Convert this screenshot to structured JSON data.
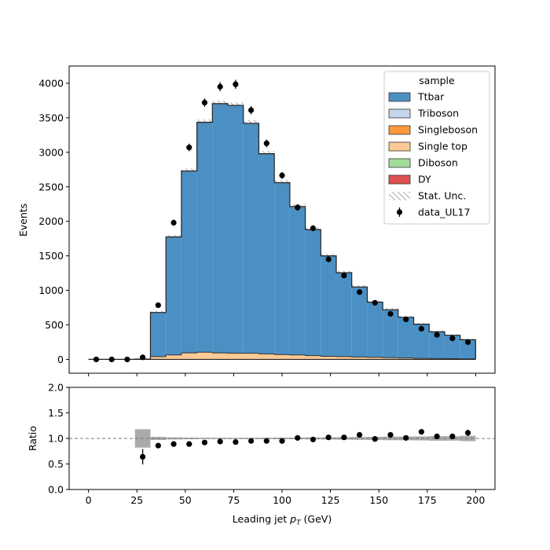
{
  "chart_data": [
    {
      "type": "stacked-step-histogram",
      "ylabel": "Events",
      "ylim": [
        -200,
        4250
      ],
      "yticks": [
        0,
        500,
        1000,
        1500,
        2000,
        2500,
        3000,
        3500,
        4000
      ],
      "bin_edges": [
        0,
        8,
        16,
        24,
        32,
        40,
        48,
        56,
        64,
        72,
        80,
        88,
        96,
        104,
        112,
        120,
        128,
        136,
        144,
        152,
        160,
        168,
        176,
        184,
        192,
        200
      ],
      "stack_totals": [
        0,
        0,
        0,
        5,
        680,
        1775,
        2730,
        3435,
        3705,
        3680,
        3420,
        2980,
        2560,
        2215,
        1880,
        1500,
        1255,
        1050,
        830,
        720,
        610,
        510,
        400,
        350,
        285
      ],
      "singletop_top": [
        0,
        0,
        0,
        3,
        40,
        65,
        95,
        105,
        95,
        90,
        90,
        80,
        70,
        65,
        55,
        45,
        40,
        35,
        30,
        25,
        20,
        15,
        12,
        10,
        8
      ],
      "stat_unc": [
        0,
        0,
        0,
        3,
        25,
        30,
        35,
        40,
        45,
        45,
        45,
        40,
        40,
        35,
        35,
        32,
        30,
        28,
        25,
        25,
        22,
        20,
        18,
        15,
        15
      ],
      "data_x": [
        4,
        12,
        20,
        28,
        36,
        44,
        52,
        60,
        68,
        76,
        84,
        92,
        100,
        108,
        116,
        124,
        132,
        140,
        148,
        156,
        164,
        172,
        180,
        188,
        196
      ],
      "data_y": [
        0,
        0,
        0,
        30,
        785,
        1980,
        3070,
        3720,
        3950,
        3985,
        3610,
        3130,
        2665,
        2200,
        1900,
        1450,
        1215,
        975,
        820,
        660,
        580,
        445,
        355,
        305,
        250
      ],
      "data_err": [
        0,
        0,
        0,
        10,
        30,
        45,
        55,
        60,
        65,
        65,
        60,
        55,
        50,
        47,
        43,
        38,
        35,
        31,
        28,
        26,
        24,
        21,
        19,
        17,
        16
      ],
      "legend": {
        "title": "sample",
        "placement": "top-right",
        "entries": [
          {
            "label": "Ttbar",
            "color": "#4b90c4",
            "kind": "patch"
          },
          {
            "label": "Triboson",
            "color": "#c3d6ea",
            "kind": "patch"
          },
          {
            "label": "Singleboson",
            "color": "#fc9a3e",
            "kind": "patch"
          },
          {
            "label": "Single top",
            "color": "#fdc994",
            "kind": "patch"
          },
          {
            "label": "Diboson",
            "color": "#a4dd99",
            "kind": "patch"
          },
          {
            "label": "DY",
            "color": "#de5251",
            "kind": "patch"
          },
          {
            "label": "Stat. Unc.",
            "color": "#888888",
            "kind": "hatch"
          },
          {
            "label": "data_UL17",
            "color": "#000000",
            "kind": "errorbar"
          }
        ]
      }
    },
    {
      "type": "ratio",
      "ylabel": "Ratio",
      "ylim": [
        0.0,
        2.0
      ],
      "yticks": [
        0.0,
        0.5,
        1.0,
        1.5,
        2.0
      ],
      "xlim": [
        -10,
        210
      ],
      "xticks": [
        0,
        25,
        50,
        75,
        100,
        125,
        150,
        175,
        200
      ],
      "xlabel": "Leading jet  p_T (GeV)",
      "xlabel_main": "Leading jet  ",
      "xlabel_p": "p",
      "xlabel_sub": "T",
      "xlabel_unit": " (GeV)",
      "reference_line": 1.0,
      "unc_band": [
        0,
        0,
        0,
        0.18,
        0.03,
        0.02,
        0.015,
        0.012,
        0.012,
        0.012,
        0.013,
        0.013,
        0.015,
        0.016,
        0.018,
        0.021,
        0.024,
        0.027,
        0.03,
        0.035,
        0.036,
        0.039,
        0.045,
        0.043,
        0.053
      ],
      "ratio_x": [
        28,
        36,
        44,
        52,
        60,
        68,
        76,
        84,
        92,
        100,
        108,
        116,
        124,
        132,
        140,
        148,
        156,
        164,
        172,
        180,
        188,
        196
      ],
      "ratio_y": [
        0.64,
        0.86,
        0.89,
        0.89,
        0.92,
        0.94,
        0.93,
        0.95,
        0.95,
        0.95,
        1.01,
        0.98,
        1.02,
        1.02,
        1.07,
        0.99,
        1.07,
        1.01,
        1.13,
        1.04,
        1.04,
        1.11
      ],
      "ratio_err": [
        0.15,
        0.02,
        0.02,
        0.02,
        0.02,
        0.02,
        0.02,
        0.02,
        0.02,
        0.02,
        0.02,
        0.02,
        0.02,
        0.03,
        0.03,
        0.03,
        0.03,
        0.04,
        0.04,
        0.05,
        0.05,
        0.06
      ]
    }
  ]
}
